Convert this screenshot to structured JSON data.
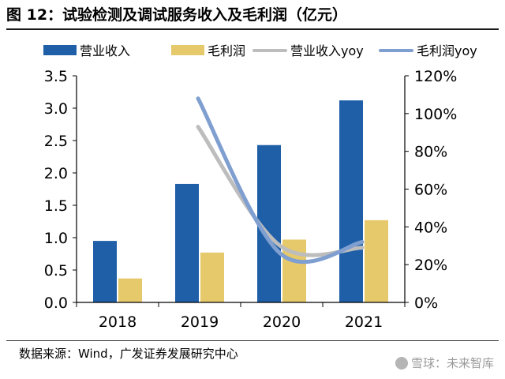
{
  "header": {
    "title": "图 12：试验检测及调试服务收入及毛利润（亿元）"
  },
  "footer": {
    "source": "数据来源：Wind，广发证券发展研究中心",
    "watermark": "雪球：未来智库",
    "watermark_icon": "snowball-logo-icon"
  },
  "chart_data": {
    "type": "bar",
    "categories": [
      "2018",
      "2019",
      "2020",
      "2021"
    ],
    "series": [
      {
        "name": "营业收入",
        "type": "bar",
        "axis": "left",
        "color": "#1f5fa8",
        "values": [
          0.95,
          1.83,
          2.43,
          3.12
        ]
      },
      {
        "name": "毛利润",
        "type": "bar",
        "axis": "left",
        "color": "#e6c96a",
        "values": [
          0.37,
          0.77,
          0.97,
          1.27
        ]
      },
      {
        "name": "营业收入yoy",
        "type": "line",
        "axis": "right",
        "color": "#bdbdbd",
        "values": [
          null,
          93,
          30,
          29
        ]
      },
      {
        "name": "毛利润yoy",
        "type": "line",
        "axis": "right",
        "color": "#7f9fd0",
        "values": [
          null,
          108,
          26,
          32
        ]
      }
    ],
    "y_left": {
      "min": 0,
      "max": 3.5,
      "ticks": [
        "0.0",
        "0.5",
        "1.0",
        "1.5",
        "2.0",
        "2.5",
        "3.0",
        "3.5"
      ]
    },
    "y_right": {
      "min": 0,
      "max": 120,
      "ticks": [
        "0%",
        "20%",
        "40%",
        "60%",
        "80%",
        "100%",
        "120%"
      ]
    },
    "legend_position": "top",
    "grid": false
  }
}
